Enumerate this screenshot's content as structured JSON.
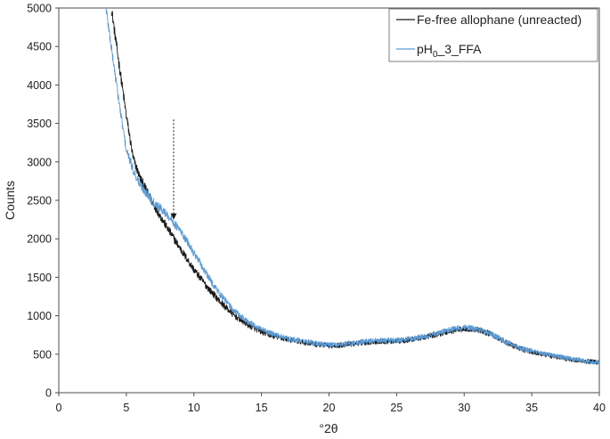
{
  "chart_data": {
    "type": "line",
    "title": "",
    "xlabel": "°2θ",
    "ylabel": "Counts",
    "xlim": [
      0,
      40
    ],
    "ylim": [
      0,
      5000
    ],
    "xticks": [
      0,
      5,
      10,
      15,
      20,
      25,
      30,
      35,
      40
    ],
    "yticks": [
      0,
      500,
      1000,
      1500,
      2000,
      2500,
      3000,
      3500,
      4000,
      4500,
      5000
    ],
    "grid": false,
    "legend_position": "top-right",
    "series": [
      {
        "name": "Fe-free allophane (unreacted)",
        "color": "#1a1a1a",
        "points": [
          [
            3.9,
            5000
          ],
          [
            4.2,
            4600
          ],
          [
            4.6,
            4100
          ],
          [
            5.0,
            3600
          ],
          [
            5.5,
            3050
          ],
          [
            6.0,
            2800
          ],
          [
            7.0,
            2450
          ],
          [
            8.0,
            2150
          ],
          [
            9.0,
            1870
          ],
          [
            10.0,
            1600
          ],
          [
            11.0,
            1370
          ],
          [
            12.0,
            1170
          ],
          [
            13.0,
            1000
          ],
          [
            14.0,
            880
          ],
          [
            15.0,
            790
          ],
          [
            16.0,
            730
          ],
          [
            17.0,
            690
          ],
          [
            18.0,
            660
          ],
          [
            19.0,
            630
          ],
          [
            20.0,
            610
          ],
          [
            21.0,
            620
          ],
          [
            22.0,
            640
          ],
          [
            23.0,
            660
          ],
          [
            24.0,
            670
          ],
          [
            25.0,
            670
          ],
          [
            26.0,
            690
          ],
          [
            27.0,
            720
          ],
          [
            28.0,
            760
          ],
          [
            29.0,
            800
          ],
          [
            30.0,
            830
          ],
          [
            31.0,
            820
          ],
          [
            32.0,
            760
          ],
          [
            33.0,
            660
          ],
          [
            34.0,
            580
          ],
          [
            35.0,
            530
          ],
          [
            36.0,
            490
          ],
          [
            37.0,
            460
          ],
          [
            38.0,
            430
          ],
          [
            39.0,
            410
          ],
          [
            40.0,
            395
          ]
        ]
      },
      {
        "name": "pH0_3_FFA",
        "color": "#5b9bd5",
        "points": [
          [
            3.5,
            5000
          ],
          [
            3.8,
            4600
          ],
          [
            4.2,
            4100
          ],
          [
            4.6,
            3600
          ],
          [
            5.0,
            3150
          ],
          [
            5.5,
            2900
          ],
          [
            6.0,
            2700
          ],
          [
            7.0,
            2480
          ],
          [
            8.0,
            2320
          ],
          [
            9.0,
            2100
          ],
          [
            10.0,
            1820
          ],
          [
            11.0,
            1520
          ],
          [
            12.0,
            1260
          ],
          [
            13.0,
            1060
          ],
          [
            14.0,
            920
          ],
          [
            15.0,
            820
          ],
          [
            16.0,
            750
          ],
          [
            17.0,
            700
          ],
          [
            18.0,
            670
          ],
          [
            19.0,
            640
          ],
          [
            20.0,
            620
          ],
          [
            21.0,
            630
          ],
          [
            22.0,
            650
          ],
          [
            23.0,
            670
          ],
          [
            24.0,
            680
          ],
          [
            25.0,
            680
          ],
          [
            26.0,
            700
          ],
          [
            27.0,
            730
          ],
          [
            28.0,
            770
          ],
          [
            29.0,
            820
          ],
          [
            30.0,
            850
          ],
          [
            31.0,
            830
          ],
          [
            32.0,
            760
          ],
          [
            33.0,
            670
          ],
          [
            34.0,
            590
          ],
          [
            35.0,
            540
          ],
          [
            36.0,
            500
          ],
          [
            37.0,
            470
          ],
          [
            38.0,
            440
          ],
          [
            39.0,
            410
          ],
          [
            40.0,
            390
          ]
        ]
      }
    ],
    "annotations": [
      {
        "type": "dotted-arrow",
        "x": 8.5,
        "y_from": 3550,
        "y_to": 2250
      }
    ],
    "legend": {
      "entries": [
        {
          "label": "Fe-free allophane (unreacted)",
          "color": "#1a1a1a"
        },
        {
          "label_main": "pH",
          "label_sub": "0",
          "label_rest": "_3_FFA",
          "color": "#5b9bd5"
        }
      ]
    }
  }
}
